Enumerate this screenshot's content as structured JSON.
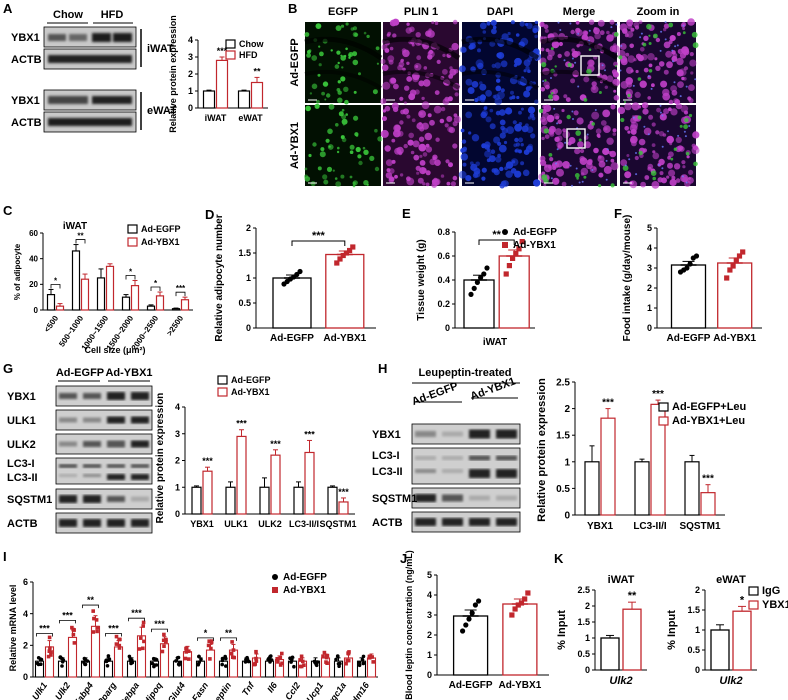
{
  "panels": {
    "A": {
      "label": "A",
      "header": [
        "Chow",
        "HFD"
      ],
      "blot_rows": [
        "YBX1",
        "ACTB",
        "YBX1",
        "ACTB"
      ],
      "tissues": [
        "iWAT",
        "eWAT"
      ],
      "chart_data": {
        "type": "bar",
        "ylabel": "Relative protein expression",
        "categories": [
          "iWAT",
          "eWAT"
        ],
        "ylim": [
          0,
          4
        ],
        "yticks": [
          0,
          1,
          2,
          3,
          4
        ],
        "series": [
          {
            "name": "Chow",
            "values": [
              1.0,
              1.0
            ],
            "err": [
              0.05,
              0.05
            ]
          },
          {
            "name": "HFD",
            "values": [
              2.8,
              1.5
            ],
            "err": [
              0.2,
              0.3
            ]
          }
        ],
        "sig": [
          "***",
          "**"
        ]
      }
    },
    "B": {
      "label": "B",
      "columns": [
        "EGFP",
        "PLIN 1",
        "DAPI",
        "Merge",
        "Zoom in"
      ],
      "rows": [
        "Ad-EGFP",
        "Ad-YBX1"
      ]
    },
    "C": {
      "label": "C",
      "chart_data": {
        "type": "bar",
        "title": "iWAT",
        "ylabel": "% of adipocyte",
        "xlabel": "Cell size (μm²)",
        "categories": [
          "<500",
          "500~1000",
          "1000~1500",
          "1500~2000",
          "2000~2500",
          ">2500"
        ],
        "ylim": [
          0,
          60
        ],
        "yticks": [
          0,
          20,
          40,
          60
        ],
        "series": [
          {
            "name": "Ad-EGFP",
            "values": [
              12,
              46,
              25,
              10,
              3,
              1
            ],
            "err": [
              4,
              5,
              7,
              2,
              1,
              0.5
            ]
          },
          {
            "name": "Ad-YBX1",
            "values": [
              3,
              24,
              34,
              19,
              11,
              8
            ],
            "err": [
              2,
              4,
              2,
              4,
              3,
              2
            ]
          }
        ],
        "sig": [
          "*",
          "**",
          "",
          "*",
          "*",
          "***"
        ]
      }
    },
    "D": {
      "label": "D",
      "chart_data": {
        "type": "bar",
        "ylabel": "Relative adipocyte number",
        "categories": [
          "Ad-EGFP",
          "Ad-YBX1"
        ],
        "ylim": [
          0,
          2.0
        ],
        "yticks": [
          0,
          0.5,
          1.0,
          1.5,
          2.0
        ],
        "values": [
          1.0,
          1.47
        ],
        "err": [
          0.06,
          0.07
        ],
        "points": [
          [
            0.88,
            0.93,
            0.98,
            1.02,
            1.07,
            1.13
          ],
          [
            1.3,
            1.38,
            1.45,
            1.5,
            1.55,
            1.62
          ]
        ],
        "sig": "***"
      }
    },
    "E": {
      "label": "E",
      "chart_data": {
        "type": "bar",
        "ylabel": "Tissue weight (g)",
        "xlabel": "iWAT",
        "legend": [
          "Ad-EGFP",
          "Ad-YBX1"
        ],
        "ylim": [
          0,
          0.8
        ],
        "yticks": [
          0,
          0.2,
          0.4,
          0.6,
          0.8
        ],
        "values": [
          0.4,
          0.6
        ],
        "err": [
          0.04,
          0.05
        ],
        "points": [
          [
            0.28,
            0.33,
            0.38,
            0.42,
            0.45,
            0.5
          ],
          [
            0.45,
            0.52,
            0.58,
            0.62,
            0.66,
            0.72
          ]
        ],
        "sig": "**"
      }
    },
    "F": {
      "label": "F",
      "chart_data": {
        "type": "bar",
        "ylabel": "Food intake (g/day/mouse)",
        "categories": [
          "Ad-EGFP",
          "Ad-YBX1"
        ],
        "ylim": [
          0,
          5
        ],
        "yticks": [
          0,
          1,
          2,
          3,
          4,
          5
        ],
        "values": [
          3.15,
          3.25
        ],
        "err": [
          0.18,
          0.25
        ],
        "points": [
          [
            2.8,
            2.9,
            3.0,
            3.2,
            3.5,
            3.6
          ],
          [
            2.5,
            2.9,
            3.1,
            3.4,
            3.6,
            3.8
          ]
        ]
      }
    },
    "G": {
      "label": "G",
      "header": [
        "Ad-EGFP",
        "Ad-YBX1"
      ],
      "blot_rows": [
        "YBX1",
        "ULK1",
        "ULK2",
        "LC3-I",
        "LC3-II",
        "SQSTM1",
        "ACTB"
      ],
      "chart_data": {
        "type": "bar",
        "ylabel": "Relative protein expression",
        "categories": [
          "YBX1",
          "ULK1",
          "ULK2",
          "LC3-II/I",
          "SQSTM1"
        ],
        "ylim": [
          0,
          4
        ],
        "yticks": [
          0,
          1,
          2,
          3,
          4
        ],
        "series": [
          {
            "name": "Ad-EGFP",
            "values": [
              1,
              1,
              1,
              1,
              1
            ],
            "err": [
              0.05,
              0.2,
              0.35,
              0.2,
              0.05
            ]
          },
          {
            "name": "Ad-YBX1",
            "values": [
              1.6,
              2.9,
              2.2,
              2.3,
              0.45
            ],
            "err": [
              0.15,
              0.25,
              0.2,
              0.45,
              0.15
            ]
          }
        ],
        "sig": [
          "***",
          "***",
          "***",
          "***",
          "***"
        ]
      }
    },
    "H": {
      "label": "H",
      "treatment": "Leupeptin-treated",
      "header": [
        "Ad-EGFP",
        "Ad-YBX1"
      ],
      "blot_rows": [
        "YBX1",
        "LC3-I",
        "LC3-II",
        "SQSTM1",
        "ACTB"
      ],
      "chart_data": {
        "type": "bar",
        "ylabel": "Relative protein expression",
        "categories": [
          "YBX1",
          "LC3-II/I",
          "SQSTM1"
        ],
        "ylim": [
          0,
          2.5
        ],
        "yticks": [
          0,
          0.5,
          1.0,
          1.5,
          2.0,
          2.5
        ],
        "series": [
          {
            "name": "Ad-EGFP+Leu",
            "values": [
              1.0,
              1.0,
              1.0
            ],
            "err": [
              0.3,
              0.05,
              0.12
            ]
          },
          {
            "name": "Ad-YBX1+Leu",
            "values": [
              1.82,
              2.08,
              0.42
            ],
            "err": [
              0.18,
              0.08,
              0.15
            ]
          }
        ],
        "sig": [
          "***",
          "***",
          "***"
        ]
      }
    },
    "I": {
      "label": "I",
      "chart_data": {
        "type": "bar",
        "ylabel": "Relative mRNA level",
        "categories": [
          "Ulk1",
          "Ulk2",
          "Fabp4",
          "Pparg",
          "Cebpa",
          "Adipoq",
          "Glut4",
          "Fasn",
          "Leptin",
          "Tnf",
          "Il6",
          "Ccl2",
          "Ucp1",
          "Ppargc1a",
          "Prdm16"
        ],
        "ylim": [
          0,
          6
        ],
        "yticks": [
          0,
          2,
          4,
          6
        ],
        "series": [
          {
            "name": "Ad-EGFP",
            "values": [
              1,
              1,
              1,
              1,
              1,
              1,
              1,
              1,
              1,
              1,
              1,
              1,
              1,
              1,
              1
            ]
          },
          {
            "name": "Ad-YBX1",
            "values": [
              1.9,
              2.5,
              3.2,
              1.9,
              2.6,
              2.1,
              1.6,
              1.7,
              1.7,
              1.2,
              1.1,
              1.0,
              1.2,
              1.2,
              1.2
            ]
          }
        ],
        "sig": [
          "***",
          "***",
          "**",
          "***",
          "***",
          "***",
          "",
          "*",
          "**",
          "",
          "",
          "",
          "",
          "",
          ""
        ]
      }
    },
    "J": {
      "label": "J",
      "chart_data": {
        "type": "bar",
        "ylabel": "Blood leptin concentration (ng/mL)",
        "categories": [
          "Ad-EGFP",
          "Ad-YBX1"
        ],
        "ylim": [
          0,
          5
        ],
        "yticks": [
          0,
          1,
          2,
          3,
          4,
          5
        ],
        "values": [
          2.95,
          3.55
        ],
        "err": [
          0.3,
          0.25
        ],
        "points": [
          [
            2.2,
            2.5,
            2.8,
            3.1,
            3.5,
            3.7
          ],
          [
            3.0,
            3.3,
            3.5,
            3.6,
            3.8,
            4.1
          ]
        ]
      }
    },
    "K": {
      "label": "K",
      "chart_data": [
        {
          "type": "bar",
          "title": "iWAT",
          "ylabel": "% Input",
          "xlabel": "Ulk2",
          "ylim": [
            0,
            2.5
          ],
          "yticks": [
            0,
            0.5,
            1.0,
            1.5,
            2.0,
            2.5
          ],
          "series": [
            {
              "name": "IgG",
              "values": [
                1.0
              ],
              "err": [
                0.08
              ]
            },
            {
              "name": "YBX1",
              "values": [
                1.9
              ],
              "err": [
                0.22
              ]
            }
          ],
          "sig": "**"
        },
        {
          "type": "bar",
          "title": "eWAT",
          "ylabel": "% Input",
          "xlabel": "Ulk2",
          "ylim": [
            0,
            2.0
          ],
          "yticks": [
            0,
            0.5,
            1.0,
            1.5,
            2.0
          ],
          "series": [
            {
              "name": "IgG",
              "values": [
                1.0
              ],
              "err": [
                0.13
              ]
            },
            {
              "name": "YBX1",
              "values": [
                1.47
              ],
              "err": [
                0.12
              ]
            }
          ],
          "sig": "*"
        }
      ]
    }
  },
  "colors": {
    "control": "#000000",
    "treat": "#c1272d",
    "egfp": "#39c43a",
    "plin": "#c040c8",
    "dapi": "#1e3dd8"
  }
}
